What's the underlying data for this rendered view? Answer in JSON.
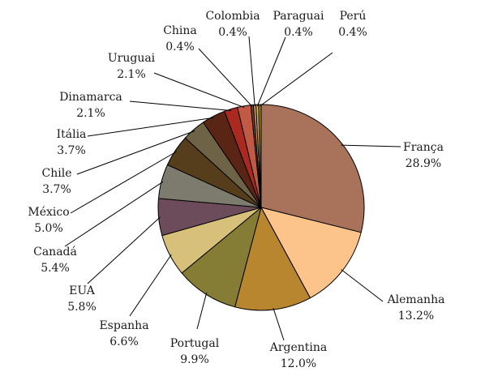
{
  "chart_data": {
    "type": "pie",
    "title": "",
    "legend": "none",
    "start_angle_deg": 0,
    "direction": "clockwise",
    "slices": [
      {
        "label": "França",
        "value": 28.9,
        "value_label": "28.9%",
        "color": "#a8735a"
      },
      {
        "label": "Alemanha",
        "value": 13.2,
        "value_label": "13.2%",
        "color": "#fcc48a"
      },
      {
        "label": "Argentina",
        "value": 12.0,
        "value_label": "12.0%",
        "color": "#b8862f"
      },
      {
        "label": "Portugal",
        "value": 9.9,
        "value_label": "9.9%",
        "color": "#857c35"
      },
      {
        "label": "Espanha",
        "value": 6.6,
        "value_label": "6.6%",
        "color": "#d6c07a"
      },
      {
        "label": "EUA",
        "value": 5.8,
        "value_label": "5.8%",
        "color": "#6c4b5a"
      },
      {
        "label": "Canadá",
        "value": 5.4,
        "value_label": "5.4%",
        "color": "#7c7b6e"
      },
      {
        "label": "México",
        "value": 5.0,
        "value_label": "5.0%",
        "color": "#563e1c"
      },
      {
        "label": "Chile",
        "value": 3.7,
        "value_label": "3.7%",
        "color": "#6e6346"
      },
      {
        "label": "Itália",
        "value": 3.7,
        "value_label": "3.7%",
        "color": "#5a2514"
      },
      {
        "label": "Dinamarca",
        "value": 2.1,
        "value_label": "2.1%",
        "color": "#aa2a22"
      },
      {
        "label": "Uruguai",
        "value": 2.1,
        "value_label": "2.1%",
        "color": "#c05a45"
      },
      {
        "label": "China",
        "value": 0.4,
        "value_label": "0.4%",
        "color": "#7a3a2a"
      },
      {
        "label": "Colombia",
        "value": 0.4,
        "value_label": "0.4%",
        "color": "#c89a50"
      },
      {
        "label": "Paraguai",
        "value": 0.4,
        "value_label": "0.4%",
        "color": "#e0b46a"
      },
      {
        "label": "Perú",
        "value": 0.4,
        "value_label": "0.4%",
        "color": "#9a8a3a"
      }
    ]
  }
}
